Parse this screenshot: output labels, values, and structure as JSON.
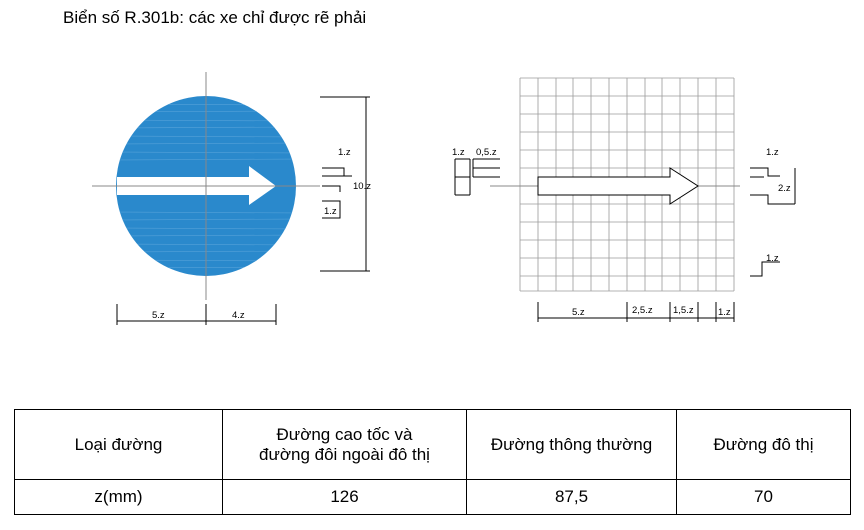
{
  "title": "Biển số R.301b: các xe chỉ được rẽ phải",
  "colors": {
    "sign_blue": "#2a89cc",
    "arrow_fill": "#ffffff",
    "line": "#000000",
    "grid": "#999999"
  },
  "left_view": {
    "dimensions": {
      "height": "10.z",
      "arrow_head": "1.z",
      "arrow_shaft": "1.z",
      "left_width": "5.z",
      "right_width": "4.z"
    }
  },
  "right_view": {
    "left_dims": {
      "a": "1.z",
      "b": "0,5.z"
    },
    "right_dims": {
      "top_label": "1.z",
      "side_label": "2.z",
      "bottom_label": "1.z"
    },
    "bottom_dims": [
      "5.z",
      "2,5.z",
      "1,5.z",
      "1.z"
    ]
  },
  "table": {
    "headers": [
      "Loại đường",
      "Đường cao tốc và\nđường đôi ngoài đô thị",
      "Đường thông thường",
      "Đường đô thị"
    ],
    "row": [
      "z(mm)",
      "126",
      "87,5",
      "70"
    ]
  }
}
